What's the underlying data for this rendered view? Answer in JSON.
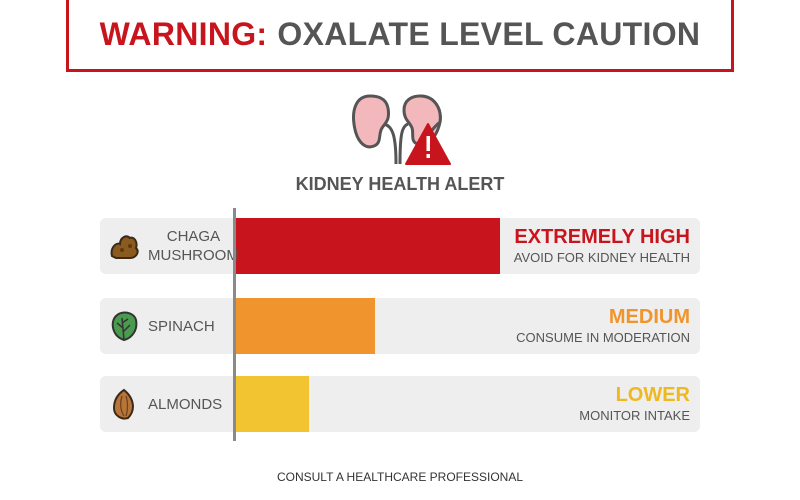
{
  "header": {
    "warning_word": "WARNING:",
    "title_rest": "OXALATE LEVEL CAUTION"
  },
  "subtitle": "KIDNEY HEALTH ALERT",
  "footer": "CONSULT A HEALTHCARE PROFESSIONAL",
  "icons": {
    "header_icon": "kidneys-warning-icon"
  },
  "chart_data": {
    "type": "bar",
    "orientation": "horizontal",
    "categories": [
      "CHAGA MUSHROOM",
      "SPINACH",
      "ALMONDS"
    ],
    "values": [
      0.57,
      0.3,
      0.16
    ],
    "value_scale": "relative bar length (fraction of full track)",
    "items": [
      {
        "name_lines": [
          "CHAGA",
          "MUSHROOM"
        ],
        "level": "EXTREMELY HIGH",
        "advice": "AVOID FOR KIDNEY HEALTH",
        "color": "#c8141c",
        "icon": "chaga-icon"
      },
      {
        "name_lines": [
          "SPINACH"
        ],
        "level": "MEDIUM",
        "advice": "CONSUME IN MODERATION",
        "color": "#f0952e",
        "icon": "spinach-leaf-icon"
      },
      {
        "name_lines": [
          "ALMONDS"
        ],
        "level": "LOWER",
        "advice": "MONITOR INTAKE",
        "color": "#f2c431",
        "icon": "almond-icon"
      }
    ]
  }
}
